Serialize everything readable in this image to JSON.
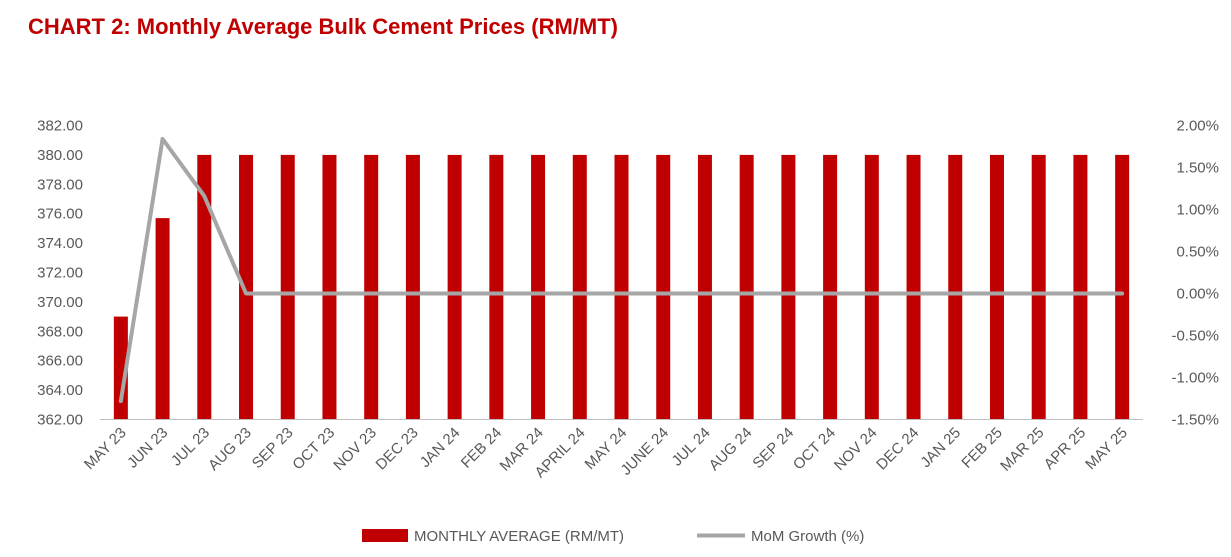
{
  "chart_data": {
    "type": "bar",
    "title": "CHART 2:  Monthly Average Bulk Cement Prices (RM/MT)",
    "categories": [
      "MAY 23",
      "JUN 23",
      "JUL 23",
      "AUG 23",
      "SEP 23",
      "OCT 23",
      "NOV 23",
      "DEC 23",
      "JAN 24",
      "FEB 24",
      "MAR 24",
      "APRIL 24",
      "MAY 24",
      "JUNE 24",
      "JUL 24",
      "AUG 24",
      "SEP 24",
      "OCT 24",
      "NOV 24",
      "DEC 24",
      "JAN 25",
      "FEB 25",
      "MAR 25",
      "APR 25",
      "MAY 25"
    ],
    "series": [
      {
        "name": "MONTHLY AVERAGE (RM/MT)",
        "type": "bar",
        "axis": "left",
        "color": "#c00000",
        "values": [
          369.0,
          375.7,
          380.0,
          380.0,
          380.0,
          380.0,
          380.0,
          380.0,
          380.0,
          380.0,
          380.0,
          380.0,
          380.0,
          380.0,
          380.0,
          380.0,
          380.0,
          380.0,
          380.0,
          380.0,
          380.0,
          380.0,
          380.0,
          380.0,
          380.0
        ]
      },
      {
        "name": "MoM Growth (%)",
        "type": "line",
        "axis": "right",
        "color": "#a6a6a6",
        "values": [
          -1.28,
          1.84,
          1.16,
          0.0,
          0.0,
          0.0,
          0.0,
          0.0,
          0.0,
          0.0,
          0.0,
          0.0,
          0.0,
          0.0,
          0.0,
          0.0,
          0.0,
          0.0,
          0.0,
          0.0,
          0.0,
          0.0,
          0.0,
          0.0,
          0.0
        ]
      }
    ],
    "y_left": {
      "ylim": [
        362,
        382
      ],
      "ticks": [
        362,
        364,
        366,
        368,
        370,
        372,
        374,
        376,
        378,
        380,
        382
      ],
      "tick_labels": [
        "362.00",
        "364.00",
        "366.00",
        "368.00",
        "370.00",
        "372.00",
        "374.00",
        "376.00",
        "378.00",
        "380.00",
        "382.00"
      ]
    },
    "y_right": {
      "ylim": [
        -1.5,
        2.0
      ],
      "ticks": [
        -1.5,
        -1.0,
        -0.5,
        0.0,
        0.5,
        1.0,
        1.5,
        2.0
      ],
      "tick_labels": [
        "-1.50%",
        "-1.00%",
        "-0.50%",
        "0.00%",
        "0.50%",
        "1.00%",
        "1.50%",
        "2.00%"
      ]
    },
    "grid": false,
    "legend": "bottom"
  }
}
